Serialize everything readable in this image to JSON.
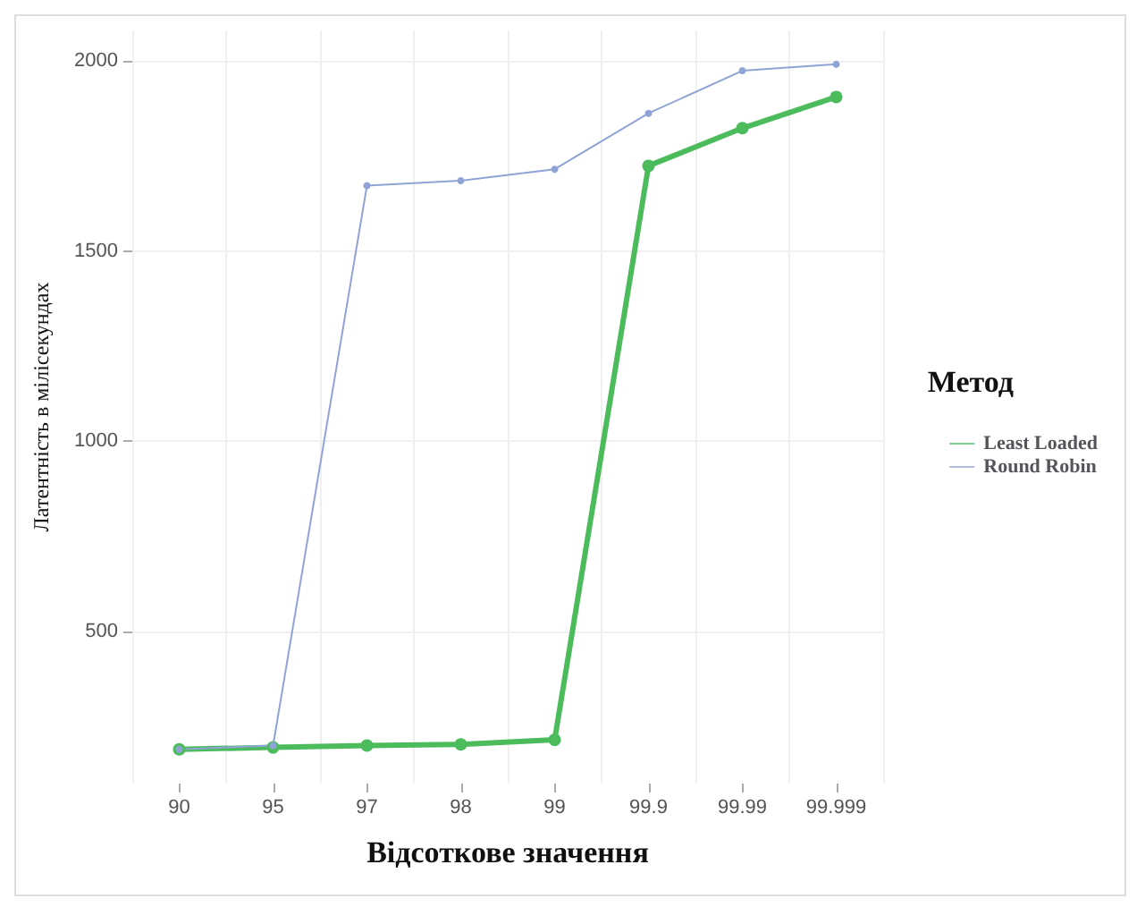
{
  "chart_data": {
    "type": "line",
    "xlabel": "Відсоткове значення",
    "ylabel": "Латентність в мілісекундах",
    "legend_title": "Метод",
    "categories": [
      "90",
      "95",
      "97",
      "98",
      "99",
      "99.9",
      "99.99",
      "99.999"
    ],
    "series": [
      {
        "name": "Least Loaded",
        "color": "#4cbb5c",
        "values": [
          190,
          195,
          200,
          203,
          215,
          1724,
          1823,
          1905
        ]
      },
      {
        "name": "Round Robin",
        "color": "#8fa3d6",
        "values": [
          190,
          200,
          1672,
          1685,
          1715,
          1862,
          1974,
          1991
        ]
      }
    ],
    "ylim": [
      100,
      2080
    ],
    "yticks": [
      500,
      1000,
      1500,
      2000
    ],
    "grid": true,
    "legend": "right",
    "marker": "circle",
    "line_style": "solid"
  }
}
